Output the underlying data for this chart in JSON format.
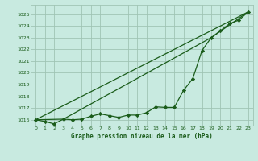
{
  "title": "Graphe pression niveau de la mer (hPa)",
  "bg_color": "#c8eae0",
  "plot_bg_color": "#c8eae0",
  "grid_color": "#a0c4b4",
  "line_color": "#1a5c1a",
  "xlabel_color": "#1a5c1a",
  "ylim": [
    1015.5,
    1025.8
  ],
  "xlim": [
    -0.5,
    23.5
  ],
  "yticks": [
    1016,
    1017,
    1018,
    1019,
    1020,
    1021,
    1022,
    1023,
    1024,
    1025
  ],
  "xticks": [
    0,
    1,
    2,
    3,
    4,
    5,
    6,
    7,
    8,
    9,
    10,
    11,
    12,
    13,
    14,
    15,
    16,
    17,
    18,
    19,
    20,
    21,
    22,
    23
  ],
  "series_main": {
    "x": [
      0,
      1,
      2,
      3,
      4,
      5,
      6,
      7,
      8,
      9,
      10,
      11,
      12,
      13,
      14,
      15,
      16,
      17,
      18,
      19,
      20,
      21,
      22,
      23
    ],
    "y": [
      1016.0,
      1015.85,
      1015.65,
      1016.05,
      1016.0,
      1016.05,
      1016.3,
      1016.5,
      1016.35,
      1016.2,
      1016.4,
      1016.4,
      1016.6,
      1017.1,
      1017.05,
      1017.05,
      1018.5,
      1019.5,
      1021.9,
      1023.0,
      1023.6,
      1024.2,
      1024.5,
      1025.2
    ]
  },
  "series_line1": {
    "x": [
      0,
      23
    ],
    "y": [
      1016.0,
      1025.2
    ]
  },
  "series_line2": {
    "x": [
      0,
      3,
      19,
      23
    ],
    "y": [
      1016.0,
      1016.05,
      1023.0,
      1025.2
    ]
  }
}
